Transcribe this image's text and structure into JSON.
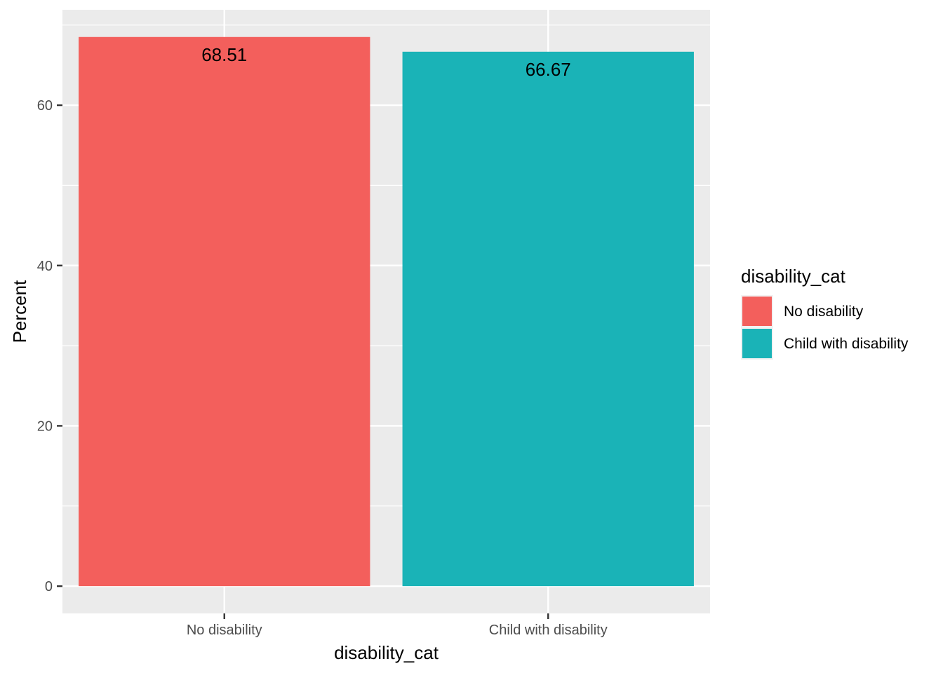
{
  "chart_data": {
    "type": "bar",
    "categories": [
      "No disability",
      "Child with disability"
    ],
    "values": [
      68.51,
      66.67
    ],
    "data_labels": [
      "68.51",
      "66.67"
    ],
    "colors": [
      "#F35F5C",
      "#1AB3B7"
    ],
    "xlabel": "disability_cat",
    "ylabel": "Percent",
    "ylim": [
      -3.4,
      71.9
    ],
    "yticks": [
      0,
      20,
      40,
      60
    ],
    "ytick_labels": [
      "0",
      "20",
      "40",
      "60"
    ],
    "grid": true,
    "legend": {
      "title": "disability_cat",
      "position": "right",
      "entries": [
        "No disability",
        "Child with disability"
      ]
    }
  }
}
